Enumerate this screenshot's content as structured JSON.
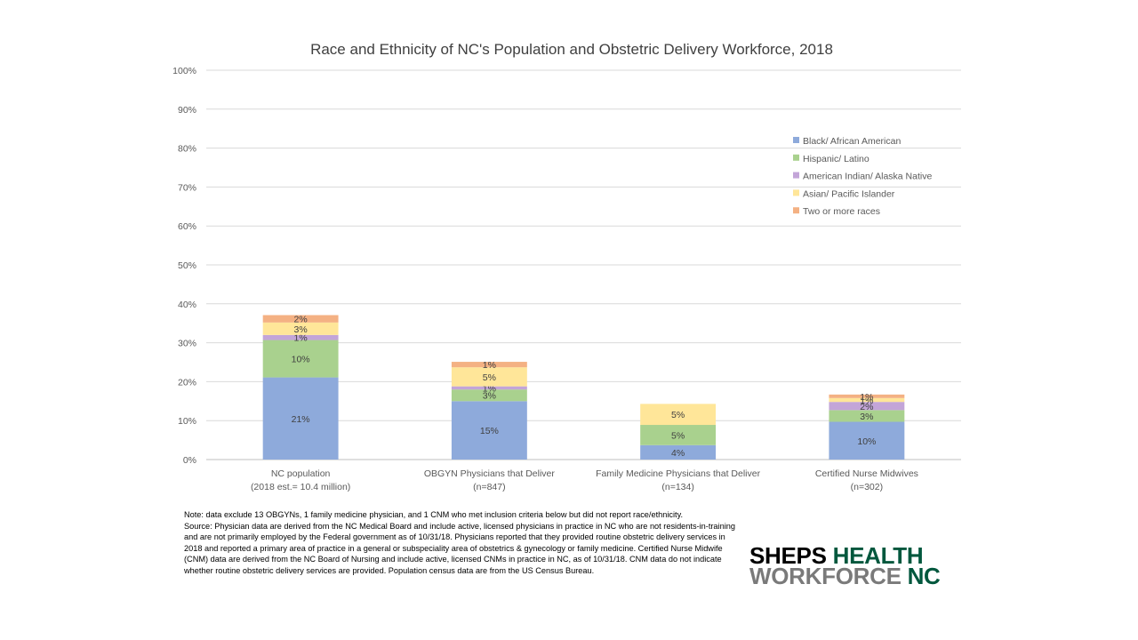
{
  "chart_data": {
    "type": "bar",
    "stacked": true,
    "title": "Race and Ethnicity of NC's Population and Obstetric Delivery Workforce, 2018",
    "xlabel": "",
    "ylabel": "",
    "ylim": [
      0,
      100
    ],
    "y_ticks": [
      "0%",
      "10%",
      "20%",
      "30%",
      "40%",
      "50%",
      "60%",
      "70%",
      "80%",
      "90%",
      "100%"
    ],
    "grid": true,
    "legend_position": "right",
    "categories": [
      {
        "line1": "NC population",
        "line2": "(2018 est.= 10.4 million)"
      },
      {
        "line1": "OBGYN Physicians that Deliver",
        "line2": "(n=847)"
      },
      {
        "line1": "Family Medicine Physicians that Deliver",
        "line2": "(n=134)"
      },
      {
        "line1": "Certified Nurse Midwives",
        "line2": "(n=302)"
      }
    ],
    "series": [
      {
        "name": "Black/ African American",
        "color": "#8eaadb",
        "values": [
          21.1,
          15.0,
          3.7,
          9.7
        ],
        "labels": [
          "21%",
          "15%",
          "4%",
          "10%"
        ]
      },
      {
        "name": "Hispanic/ Latino",
        "color": "#a9d18e",
        "values": [
          9.6,
          3.0,
          5.2,
          3.0
        ],
        "labels": [
          "10%",
          "3%",
          "5%",
          "3%"
        ]
      },
      {
        "name": "American Indian/ Alaska Native",
        "color": "#c3a5d8",
        "values": [
          1.3,
          0.8,
          0.0,
          2.1
        ],
        "labels": [
          "1%",
          "1%",
          "",
          "2%"
        ]
      },
      {
        "name": "Asian/ Pacific Islander",
        "color": "#ffe699",
        "values": [
          3.2,
          4.9,
          5.4,
          1.0
        ],
        "labels": [
          "3%",
          "5%",
          "5%",
          "1%"
        ]
      },
      {
        "name": "Two or more races",
        "color": "#f4b183",
        "values": [
          1.9,
          1.4,
          0.0,
          0.9
        ],
        "labels": [
          "2%",
          "1%",
          "",
          "1%"
        ]
      }
    ]
  },
  "note": {
    "text": "Note: data exclude 13 OBGYNs, 1 family medicine physician, and 1 CNM who met inclusion criteria below but did not report race/ethnicity.",
    "source": "Source: Physician data are derived from the NC Medical Board and include active, licensed physicians in practice in NC who are not residents-in-training and are not primarily employed by the Federal government as of 10/31/18. Physicians reported that they provided routine obstetric delivery services in 2018 and reported a primary area of practice in a general or subspeciality area of obstetrics & gynecology or family medicine. Certified Nurse Midwife (CNM) data are derived from the NC Board of Nursing and include active, licensed CNMs in practice in NC, as of 10/31/18. CNM data do not indicate whether routine obstetric delivery services are provided. Population census data are from the US Census Bureau."
  },
  "logo": {
    "word1": "SHEPS",
    "word2": "HEALTH",
    "word3": "WORKFORCE",
    "word4": "NC"
  }
}
